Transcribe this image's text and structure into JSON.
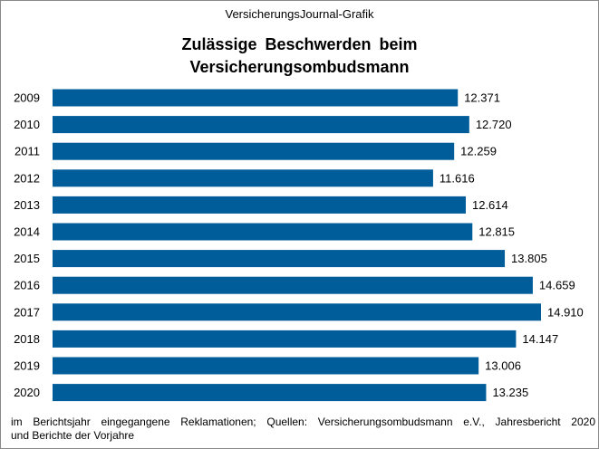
{
  "header": {
    "source_line": "VersicherungsJournal-Grafik",
    "title_line1": "Zulässige Beschwerden beim",
    "title_line2": "Versicherungsombudsmann"
  },
  "footnote": {
    "line1": "im Berichtsjahr eingegangene Reklamationen; Quellen: Versicherungsombudsmann e.V., Jahresbericht 2020",
    "line2": "und Berichte der Vorjahre"
  },
  "chart_data": {
    "type": "bar",
    "orientation": "horizontal",
    "title": "Zulässige Beschwerden beim Versicherungsombudsmann",
    "categories": [
      "2009",
      "2010",
      "2011",
      "2012",
      "2013",
      "2014",
      "2015",
      "2016",
      "2017",
      "2018",
      "2019",
      "2020"
    ],
    "values": [
      12371,
      12720,
      12259,
      11616,
      12614,
      12815,
      13805,
      14659,
      14910,
      14147,
      13006,
      13235
    ],
    "value_labels": [
      "12.371",
      "12.720",
      "12.259",
      "11.616",
      "12.614",
      "12.815",
      "13.805",
      "14.659",
      "14.910",
      "14.147",
      "13.006",
      "13.235"
    ],
    "xlim": [
      0,
      14910
    ],
    "grid": false,
    "legend": "none",
    "bar_color": "#005d99"
  }
}
